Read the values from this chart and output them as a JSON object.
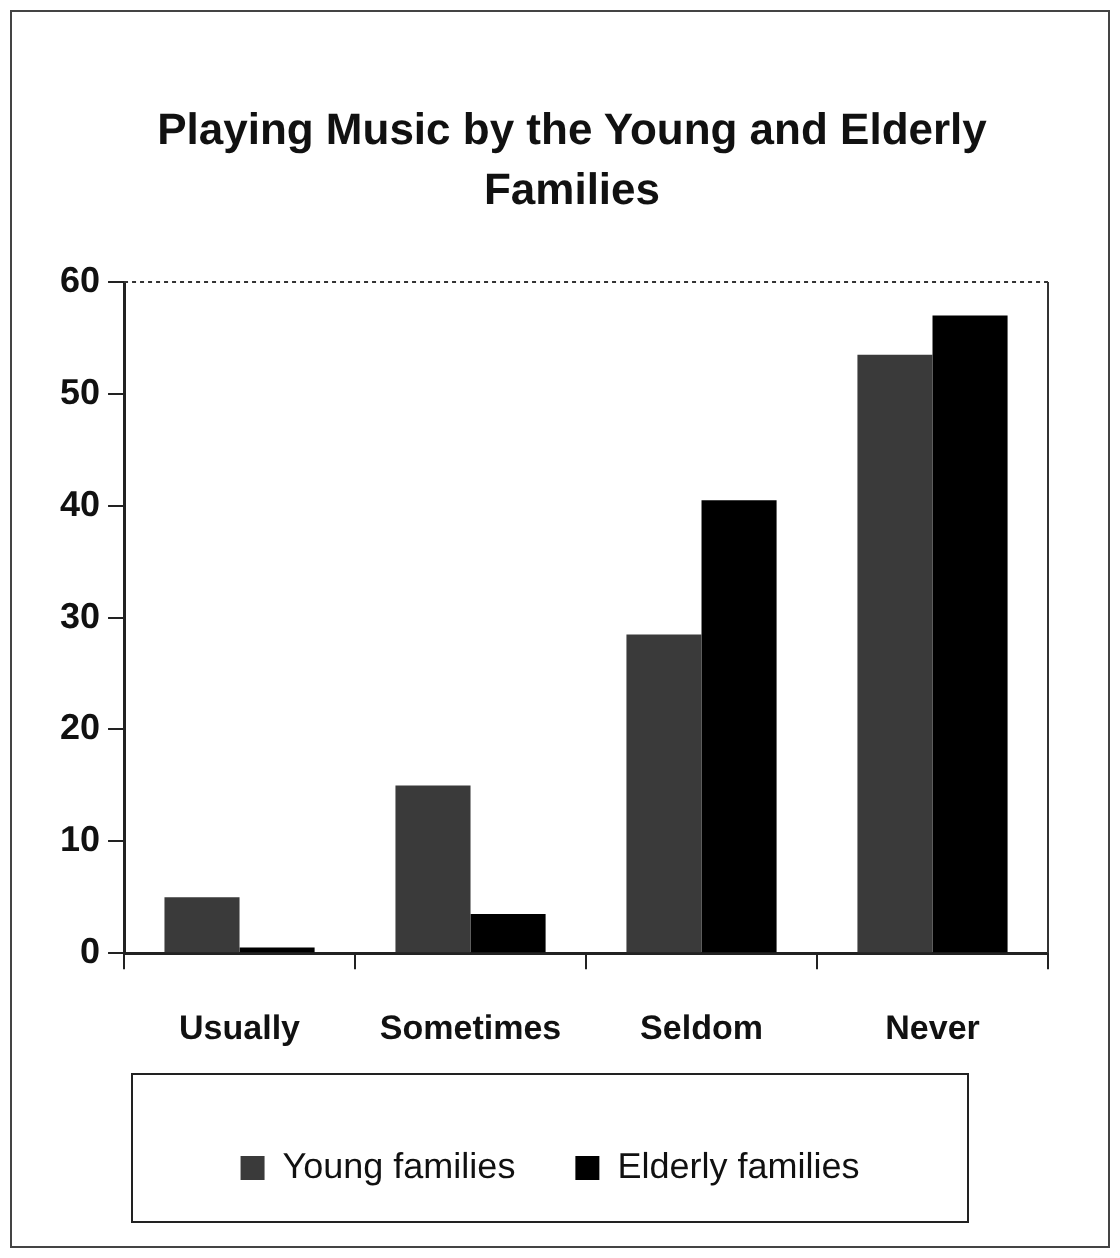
{
  "chart_data": {
    "type": "bar",
    "title": "Playing Music by the Young and Elderly Families",
    "categories": [
      "Usually",
      "Sometimes",
      "Seldom",
      "Never"
    ],
    "series": [
      {
        "name": "Young families",
        "color": "#3a3a3a",
        "values": [
          5,
          15,
          28.5,
          53.5
        ]
      },
      {
        "name": "Elderly families",
        "color": "#000000",
        "values": [
          0.5,
          3.5,
          40.5,
          57
        ]
      }
    ],
    "ylim": [
      0,
      60
    ],
    "yticks": [
      0,
      10,
      20,
      30,
      40,
      50,
      60
    ],
    "grid": false,
    "legend": "bottom"
  }
}
